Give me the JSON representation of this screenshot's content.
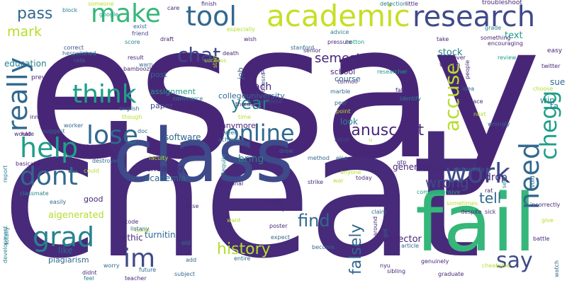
{
  "colors": {
    "background": "#ffffff",
    "dark_purple": "#482677",
    "indigo": "#453781",
    "slate_blue": "#3e4a89",
    "blue": "#31688e",
    "teal": "#26828e",
    "sea_green": "#1f9e89",
    "green": "#35b779",
    "light_green": "#6ece58",
    "lime": "#b5de2b",
    "yellow": "#dde318"
  },
  "words": {
    "essay": "essay",
    "cheat": "cheat",
    "class": "class",
    "fail": "fail",
    "research": "research",
    "academic": "academic",
    "tool": "tool",
    "make": "make",
    "pass": "pass",
    "mark": "mark",
    "education": "education",
    "grad": "grad",
    "help": "help",
    "dont": "dont",
    "lose": "lose",
    "think": "think",
    "really": "really",
    "chat": "chat",
    "year": "year",
    "online": "online",
    "im": "im",
    "history": "history",
    "manuscript": "manuscript",
    "work": "work",
    "need": "need",
    "chegg": "chegg",
    "accuse": "accuse",
    "say": "say",
    "find": "find",
    "falsely": "falsely",
    "wrong": "wrong",
    "tell": "tell",
    "semester": "semester",
    "teach": "teach",
    "school": "school",
    "course": "course",
    "look": "look",
    "generate": "generate",
    "drop": "drop",
    "stock": "stock",
    "text": "text",
    "sue": "sue",
    "win": "win",
    "ta": "ta",
    "kill": "kill",
    "cheating": "cheating",
    "academia": "academia",
    "bring": "bring",
    "software": "software",
    "paper": "paper",
    "assignment": "assignment",
    "post": "post",
    "collegeuniversity": "collegeuniversity",
    "aigenerated": "aigenerated",
    "turnitin": "turnitin",
    "ethic": "ethic",
    "like": "like",
    "good": "good",
    "plagiarism": "plagiarism",
    "detector": "detector",
    "anymore": "anymore",
    "job": "job",
    "block": "block",
    "someone": "someone",
    "care": "care",
    "finish": "finish",
    "detection": "detection",
    "little": "little",
    "troubleshoot": "troubleshoot",
    "google": "google",
    "correct": "correct",
    "hes": "hes",
    "polished": "polished",
    "rate": "rate",
    "score": "score",
    "friend": "friend",
    "exist": "exist",
    "draft": "draft",
    "especially": "especially",
    "wish": "wish",
    "stanford": "stanford",
    "advice": "advice",
    "botton": "botton",
    "grade": "grade",
    "something": "something",
    "encouraging": "encouraging",
    "prevent": "prevent",
    "would": "would",
    "result": "result",
    "warn": "warn",
    "bamboozle": "bamboozle",
    "death": "death",
    "start": "start",
    "success": "success",
    "doesnt": "doesnt",
    "board": "board",
    "pressure": "pressure",
    "senior": "senior",
    "trifecta": "trifecta",
    "researcher": "researcher",
    "take": "take",
    "version": "version",
    "never": "never",
    "review": "review",
    "easy": "easy",
    "twitter": "twitter",
    "people": "people",
    "idea": "idea",
    "choose": "choose",
    "turmoil": "turmoil",
    "marble": "marble",
    "fake": "fake",
    "identify": "identify",
    "peer": "peer",
    "point": "point",
    "replace": "replace",
    "next": "next",
    "wrongly": "wrongly",
    "inner": "inner",
    "english": "english",
    "though": "though",
    "time": "time",
    "commerce": "commerce",
    "thread": "thread",
    "useless": "useless",
    "hate": "hate",
    "worker": "worker",
    "suggest": "suggest",
    "doc": "doc",
    "week": "week",
    "achieve": "achieve",
    "robot": "robot",
    "u": "u",
    "interest": "interest",
    "thankfully": "thankfully",
    "destroyer": "destroyer",
    "basically": "basically",
    "report": "report",
    "faculty": "faculty",
    "require": "require",
    "drew": "drew",
    "else": "else",
    "method": "method",
    "gtp": "gtp",
    "retire": "retire",
    "dishonesty": "dishonesty",
    "could": "could",
    "classmate": "classmate",
    "final": "final",
    "anyone": "anyone",
    "war": "war",
    "today": "today",
    "strike": "strike",
    "rat": "rat",
    "seen": "seen",
    "avoid": "avoid",
    "comprehensive": "comprehensive",
    "easily": "easily",
    "case": "case",
    "attend": "attend",
    "topic": "topic",
    "whether": "whether",
    "claim": "claim",
    "sometimes": "sometimes",
    "despite": "despite",
    "sick": "sick",
    "incorrectly": "incorrectly",
    "give": "give",
    "development": "development",
    "want": "want",
    "code": "code",
    "texas": "texas",
    "poster": "poster",
    "around": "around",
    "got": "got",
    "article": "article",
    "battle": "battle",
    "totally": "totally",
    "listany": "listany",
    "old": "old",
    "worry": "worry",
    "expect": "expect",
    "become": "become",
    "nyu": "nyu",
    "genuinely": "genuinely",
    "cheatable": "cheatable",
    "watch": "watch",
    "didnt": "didnt",
    "feel": "feel",
    "future": "future",
    "teacher": "teacher",
    "add": "add",
    "subject": "subject",
    "entire": "entire",
    "sibling": "sibling",
    "graduate": "graduate"
  }
}
